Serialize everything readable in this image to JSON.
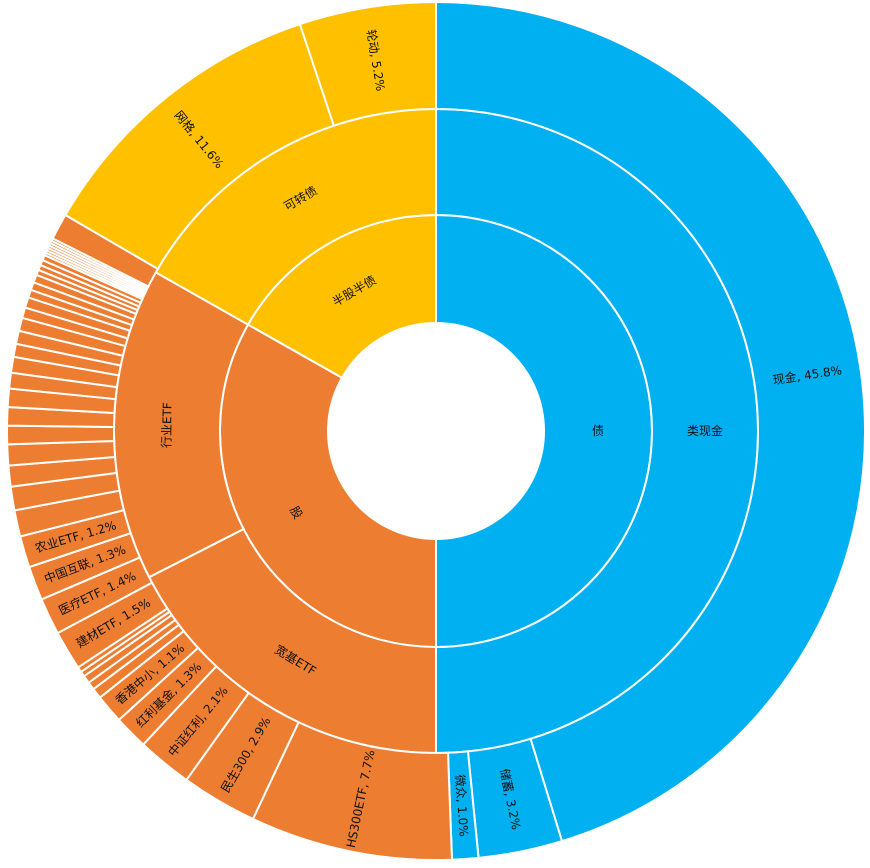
{
  "chart_data": {
    "type": "sunburst",
    "colors": {
      "债": "#00B0F0",
      "股": "#ED7D31",
      "半股半债": "#FFC000",
      "border": "#FFFFFF"
    },
    "rings": [
      {
        "level": 1,
        "segments": [
          {
            "label": "债",
            "value": 50.0,
            "group": "债"
          },
          {
            "label": "股",
            "value": 33.2,
            "group": "股"
          },
          {
            "label": "半股半债",
            "value": 16.8,
            "group": "半股半债"
          }
        ]
      },
      {
        "level": 2,
        "segments": [
          {
            "label": "类现金",
            "value": 50.0,
            "group": "债"
          },
          {
            "label": "宽基ETF",
            "value": 17.5,
            "group": "股"
          },
          {
            "label": "行业ETF",
            "value": 15.7,
            "group": "股"
          },
          {
            "label": "可转债",
            "value": 16.8,
            "group": "半股半债"
          }
        ]
      },
      {
        "level": 3,
        "segments": [
          {
            "label": "现金, 45.8%",
            "value": 45.8,
            "group": "债"
          },
          {
            "label": "储蓄, 3.2%",
            "value": 3.2,
            "group": "债"
          },
          {
            "label": "微众, 1.0%",
            "value": 1.0,
            "group": "债"
          },
          {
            "label": "HS300ETF, 7.7%",
            "value": 7.7,
            "group": "股"
          },
          {
            "label": "民生300, 2.9%",
            "value": 2.9,
            "group": "股"
          },
          {
            "label": "中证红利, 2.1%",
            "value": 2.1,
            "group": "股"
          },
          {
            "label": "红利基金, 1.3%",
            "value": 1.3,
            "group": "股"
          },
          {
            "label": "香港中小, 1.1%",
            "value": 1.1,
            "group": "股"
          },
          {
            "label": "",
            "value": 0.4,
            "group": "股"
          },
          {
            "label": "",
            "value": 0.3,
            "group": "股"
          },
          {
            "label": "",
            "value": 0.3,
            "group": "股"
          },
          {
            "label": "",
            "value": 0.2,
            "group": "股"
          },
          {
            "label": "",
            "value": 0.2,
            "group": "股"
          },
          {
            "label": "建材ETF, 1.5%",
            "value": 1.5,
            "group": "股"
          },
          {
            "label": "医疗ETF, 1.4%",
            "value": 1.4,
            "group": "股"
          },
          {
            "label": "中国互联, 1.3%",
            "value": 1.3,
            "group": "股"
          },
          {
            "label": "农业ETF, 1.2%",
            "value": 1.2,
            "group": "股"
          },
          {
            "label": "",
            "value": 1.0,
            "group": "股"
          },
          {
            "label": "",
            "value": 0.9,
            "group": "股"
          },
          {
            "label": "",
            "value": 0.8,
            "group": "股"
          },
          {
            "label": "",
            "value": 0.8,
            "group": "股"
          },
          {
            "label": "",
            "value": 0.7,
            "group": "股"
          },
          {
            "label": "",
            "value": 0.7,
            "group": "股"
          },
          {
            "label": "",
            "value": 0.7,
            "group": "股"
          },
          {
            "label": "",
            "value": 0.6,
            "group": "股"
          },
          {
            "label": "",
            "value": 0.6,
            "group": "股"
          },
          {
            "label": "",
            "value": 0.5,
            "group": "股"
          },
          {
            "label": "",
            "value": 0.5,
            "group": "股"
          },
          {
            "label": "",
            "value": 0.5,
            "group": "股"
          },
          {
            "label": "",
            "value": 0.4,
            "group": "股"
          },
          {
            "label": "",
            "value": 0.4,
            "group": "股"
          },
          {
            "label": "",
            "value": 0.3,
            "group": "股"
          },
          {
            "label": "",
            "value": 0.3,
            "group": "股"
          },
          {
            "label": "",
            "value": 0.3,
            "group": "股"
          },
          {
            "label": "",
            "value": 0.2,
            "group": "股"
          },
          {
            "label": "",
            "value": 0.2,
            "group": "股"
          },
          {
            "label": "",
            "value": 0.2,
            "group": "股"
          },
          {
            "label": "",
            "value": 0.2,
            "group": "股"
          },
          {
            "label": "",
            "value": 0.1,
            "group": "股"
          },
          {
            "label": "",
            "value": 0.1,
            "group": "股"
          },
          {
            "label": "",
            "value": 0.1,
            "group": "股"
          },
          {
            "label": "",
            "value": 0.1,
            "group": "股"
          },
          {
            "label": "",
            "value": 0.1,
            "group": "股"
          },
          {
            "label": "",
            "value": 0.1,
            "group": "股"
          },
          {
            "label": "",
            "value": 0.1,
            "group": "股"
          },
          {
            "label": "",
            "value": 1.0,
            "group": "股"
          },
          {
            "label": "网格, 11.6%",
            "value": 11.6,
            "group": "半股半债"
          },
          {
            "label": "轮动, 5.2%",
            "value": 5.2,
            "group": "半股半债"
          }
        ]
      }
    ],
    "title": "",
    "legend": "none",
    "start": "top",
    "direction": "clockwise"
  }
}
